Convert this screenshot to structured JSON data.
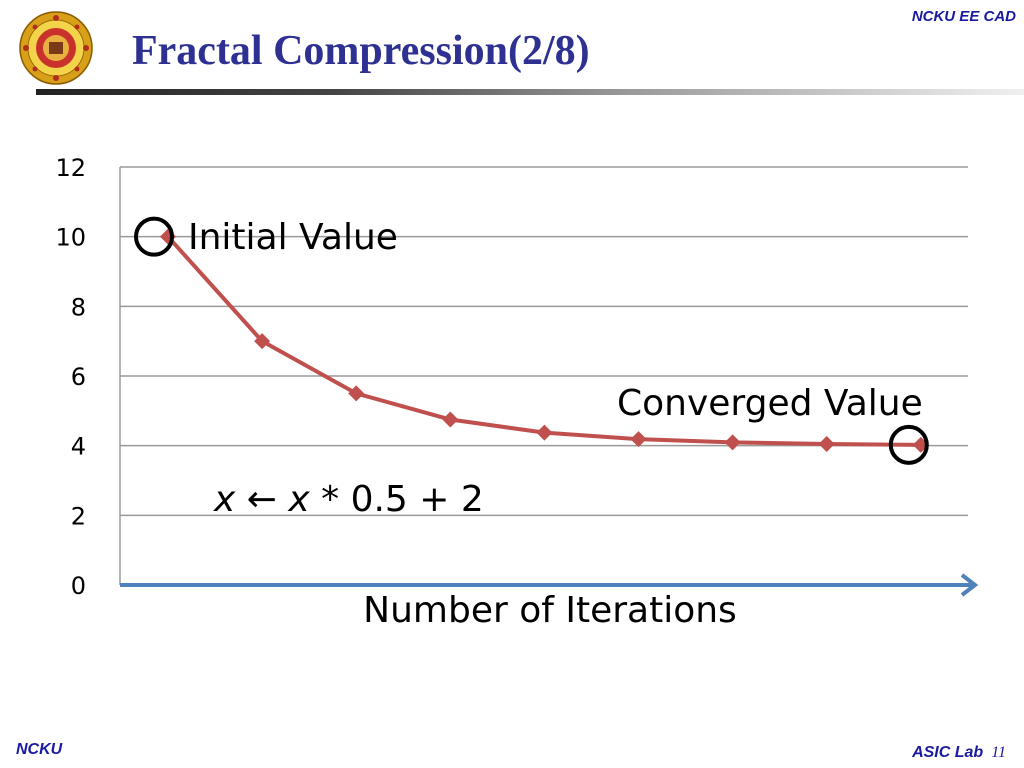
{
  "header": {
    "title": "Fractal Compression(2/8)",
    "org": "NCKU EE CAD"
  },
  "footer": {
    "left": "NCKU",
    "right": "ASIC Lab",
    "page": "11"
  },
  "colors": {
    "title": "#2e3192",
    "series": "#c0504d",
    "axis_arrow": "#4f81bd",
    "grid": "#9a9a9a"
  },
  "icons": {
    "logo": "university-seal-icon"
  },
  "chart_data": {
    "type": "line",
    "x": [
      1,
      2,
      3,
      4,
      5,
      6,
      7,
      8,
      9
    ],
    "series": [
      {
        "values": [
          10,
          7,
          5.5,
          4.75,
          4.375,
          4.1875,
          4.09375,
          4.046875,
          4.0234375
        ]
      }
    ],
    "ylim": [
      0,
      12
    ],
    "yticks": [
      "0",
      "2",
      "4",
      "6",
      "8",
      "10",
      "12"
    ],
    "xlabel": "Number of Iterations",
    "ylabel": "",
    "grid": true,
    "marker": "diamond",
    "annotations": {
      "initial": "Initial Value",
      "converged": "Converged Value",
      "formula_var": "x",
      "formula_arrow": " ← ",
      "formula_rest": " * 0.5 + 2"
    }
  }
}
